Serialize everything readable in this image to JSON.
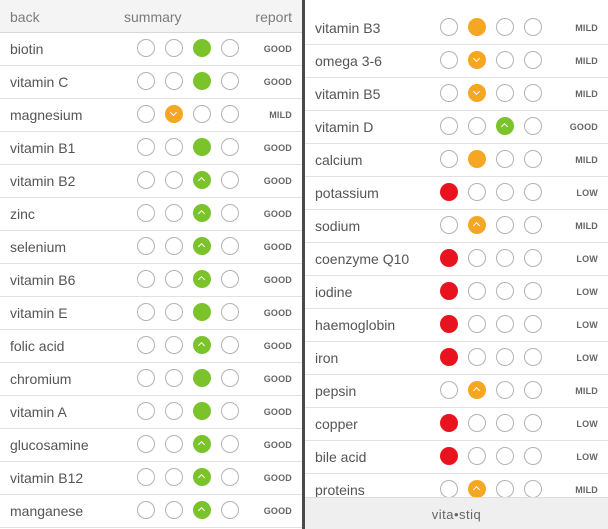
{
  "colors": {
    "green": "#7bc32b",
    "orange": "#f5a623",
    "red": "#e8131f",
    "empty": "#ffffff"
  },
  "header": {
    "back_label": "back",
    "title": "summary",
    "report_label": "report"
  },
  "left_items": [
    {
      "name": "biotin",
      "level": "GOOD",
      "marker": {
        "position": 3,
        "color": "green",
        "icon": "none"
      }
    },
    {
      "name": "vitamin C",
      "level": "GOOD",
      "marker": {
        "position": 3,
        "color": "green",
        "icon": "none"
      }
    },
    {
      "name": "magnesium",
      "level": "MILD",
      "marker": {
        "position": 2,
        "color": "orange",
        "icon": "chevron-down-icon"
      }
    },
    {
      "name": "vitamin B1",
      "level": "GOOD",
      "marker": {
        "position": 3,
        "color": "green",
        "icon": "none"
      }
    },
    {
      "name": "vitamin B2",
      "level": "GOOD",
      "marker": {
        "position": 3,
        "color": "green",
        "icon": "chevron-up-icon"
      }
    },
    {
      "name": "zinc",
      "level": "GOOD",
      "marker": {
        "position": 3,
        "color": "green",
        "icon": "chevron-up-icon"
      }
    },
    {
      "name": "selenium",
      "level": "GOOD",
      "marker": {
        "position": 3,
        "color": "green",
        "icon": "chevron-up-icon"
      }
    },
    {
      "name": "vitamin B6",
      "level": "GOOD",
      "marker": {
        "position": 3,
        "color": "green",
        "icon": "chevron-up-icon"
      }
    },
    {
      "name": "vitamin E",
      "level": "GOOD",
      "marker": {
        "position": 3,
        "color": "green",
        "icon": "none"
      }
    },
    {
      "name": "folic acid",
      "level": "GOOD",
      "marker": {
        "position": 3,
        "color": "green",
        "icon": "chevron-up-icon"
      }
    },
    {
      "name": "chromium",
      "level": "GOOD",
      "marker": {
        "position": 3,
        "color": "green",
        "icon": "none"
      }
    },
    {
      "name": "vitamin A",
      "level": "GOOD",
      "marker": {
        "position": 3,
        "color": "green",
        "icon": "none"
      }
    },
    {
      "name": "glucosamine",
      "level": "GOOD",
      "marker": {
        "position": 3,
        "color": "green",
        "icon": "chevron-up-icon"
      }
    },
    {
      "name": "vitamin B12",
      "level": "GOOD",
      "marker": {
        "position": 3,
        "color": "green",
        "icon": "chevron-up-icon"
      }
    },
    {
      "name": "manganese",
      "level": "GOOD",
      "marker": {
        "position": 3,
        "color": "green",
        "icon": "chevron-up-icon"
      }
    }
  ],
  "right_items": [
    {
      "name": "vitamin B3",
      "level": "MILD",
      "marker": {
        "position": 2,
        "color": "orange",
        "icon": "none"
      }
    },
    {
      "name": "omega 3-6",
      "level": "MILD",
      "marker": {
        "position": 2,
        "color": "orange",
        "icon": "chevron-down-icon"
      }
    },
    {
      "name": "vitamin B5",
      "level": "MILD",
      "marker": {
        "position": 2,
        "color": "orange",
        "icon": "chevron-down-icon"
      }
    },
    {
      "name": "vitamin D",
      "level": "GOOD",
      "marker": {
        "position": 3,
        "color": "green",
        "icon": "chevron-up-icon"
      }
    },
    {
      "name": "calcium",
      "level": "MILD",
      "marker": {
        "position": 2,
        "color": "orange",
        "icon": "none"
      }
    },
    {
      "name": "potassium",
      "level": "LOW",
      "marker": {
        "position": 1,
        "color": "red",
        "icon": "none"
      }
    },
    {
      "name": "sodium",
      "level": "MILD",
      "marker": {
        "position": 2,
        "color": "orange",
        "icon": "chevron-up-icon"
      }
    },
    {
      "name": "coenzyme Q10",
      "level": "LOW",
      "marker": {
        "position": 1,
        "color": "red",
        "icon": "none"
      }
    },
    {
      "name": "iodine",
      "level": "LOW",
      "marker": {
        "position": 1,
        "color": "red",
        "icon": "none"
      }
    },
    {
      "name": "haemoglobin",
      "level": "LOW",
      "marker": {
        "position": 1,
        "color": "red",
        "icon": "none"
      }
    },
    {
      "name": "iron",
      "level": "LOW",
      "marker": {
        "position": 1,
        "color": "red",
        "icon": "none"
      }
    },
    {
      "name": "pepsin",
      "level": "MILD",
      "marker": {
        "position": 2,
        "color": "orange",
        "icon": "chevron-up-icon"
      }
    },
    {
      "name": "copper",
      "level": "LOW",
      "marker": {
        "position": 1,
        "color": "red",
        "icon": "none"
      }
    },
    {
      "name": "bile acid",
      "level": "LOW",
      "marker": {
        "position": 1,
        "color": "red",
        "icon": "none"
      }
    },
    {
      "name": "proteins",
      "level": "MILD",
      "marker": {
        "position": 2,
        "color": "orange",
        "icon": "chevron-up-icon"
      }
    }
  ],
  "footer": {
    "logo_text": "vita•stiq"
  }
}
